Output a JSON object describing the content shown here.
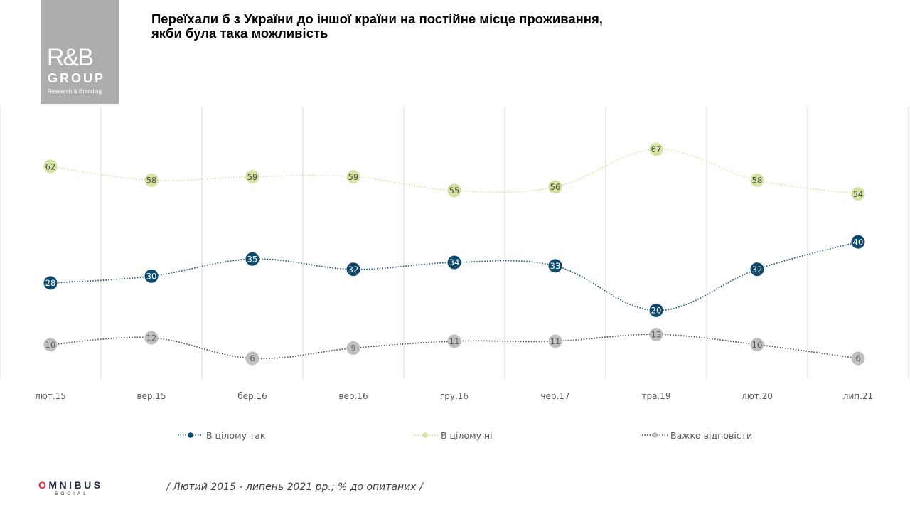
{
  "logo": {
    "mark": "R&B",
    "group": "GROUP",
    "subtitle": "Research & Branding"
  },
  "title": {
    "line1": "Переїхали б з України до іншої країни на постійне місце проживання,",
    "line2": "якби була така можливість"
  },
  "chart_data": {
    "type": "line",
    "title": "Переїхали б з України до іншої країни на постійне місце проживання, якби була така можливість",
    "xlabel": "",
    "ylabel": "",
    "categories": [
      "лют.15",
      "вер.15",
      "бер.16",
      "вер.16",
      "гру.16",
      "чер.17",
      "тра.19",
      "лют.20",
      "лип.21"
    ],
    "series": [
      {
        "name": "В цілому так",
        "color": "#0e4a6e",
        "label_color": "#ffffff",
        "values": [
          28,
          30,
          35,
          32,
          34,
          33,
          20,
          32,
          40
        ]
      },
      {
        "name": "В цілому ні",
        "color": "#d4e3a0",
        "label_color": "#4a4a4a",
        "values": [
          62,
          58,
          59,
          59,
          55,
          56,
          67,
          58,
          54
        ]
      },
      {
        "name": "Важко відповісти",
        "color": "#bfbfbf",
        "line_color": "#404040",
        "label_color": "#5a5a5a",
        "values": [
          10,
          12,
          6,
          9,
          11,
          11,
          13,
          10,
          6
        ]
      }
    ],
    "ylim": [
      0,
      75
    ],
    "grid": "vertical",
    "line_style": "dotted, smoothed",
    "data_labels": true,
    "legend_position": "bottom"
  },
  "legend": [
    {
      "label": "В цілому  так"
    },
    {
      "label": "В цілому  ні"
    },
    {
      "label": "Важко  відповісти"
    }
  ],
  "footer": {
    "brand_first": "O",
    "brand_rest": "MNIBUS",
    "brand_sub": "SOCIAL",
    "note": "/ Лютий 2015 - липень 2021 рр.; % до опитаних /"
  }
}
